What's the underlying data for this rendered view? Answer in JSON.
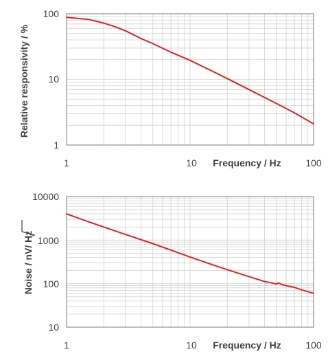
{
  "chart_data": [
    {
      "type": "line",
      "xscale": "log",
      "yscale": "log",
      "xlim": [
        1,
        100
      ],
      "ylim": [
        1,
        100
      ],
      "xticks": [
        1,
        10,
        100
      ],
      "xtick_labels": [
        "1",
        "10",
        "100"
      ],
      "yticks": [
        1,
        10,
        100
      ],
      "ytick_labels": [
        "1",
        "10",
        "100"
      ],
      "xlabel": "Frequency / Hz",
      "ylabel": "Relative responsivity / %",
      "grid": true,
      "color": "#e02020",
      "series": [
        {
          "x": [
            1,
            1.5,
            2,
            2.5,
            3,
            4,
            5,
            7,
            10,
            15,
            20,
            30,
            50,
            70,
            100
          ],
          "y": [
            88,
            82,
            72,
            63,
            55,
            42,
            35,
            26,
            19.5,
            13.5,
            10.3,
            7,
            4.3,
            3.1,
            2.1
          ]
        }
      ]
    },
    {
      "type": "line",
      "xscale": "log",
      "yscale": "log",
      "xlim": [
        1,
        100
      ],
      "ylim": [
        10,
        10000
      ],
      "xticks": [
        1,
        10,
        100
      ],
      "xtick_labels": [
        "1",
        "10",
        "100"
      ],
      "yticks": [
        10,
        100,
        1000,
        10000
      ],
      "ytick_labels": [
        "10",
        "100",
        "1000",
        "10000"
      ],
      "xlabel": "Frequency / Hz",
      "ylabel_prefix": "Noise / nV/ ",
      "ylabel_root": "Hz",
      "grid": true,
      "color": "#e02020",
      "series": [
        {
          "x": [
            1,
            1.5,
            2,
            3,
            5,
            7,
            10,
            15,
            20,
            30,
            40,
            45,
            50,
            52,
            55,
            60,
            70,
            80,
            100
          ],
          "y": [
            4000,
            2650,
            2000,
            1350,
            830,
            590,
            410,
            275,
            210,
            145,
            112,
            105,
            98,
            104,
            96,
            90,
            82,
            72,
            60
          ]
        }
      ]
    }
  ]
}
